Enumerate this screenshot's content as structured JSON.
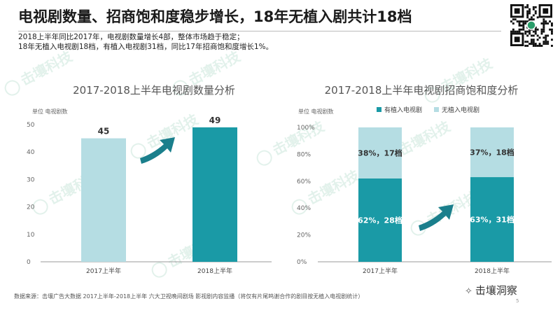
{
  "header": {
    "title": "电视剧数量、招商饱和度稳步增长，18年无植入剧共计18档",
    "subtitle_lines": [
      "2018上半年同比2017年，电视剧数量增长4部，整体市场趋于稳定；",
      "18年无植入电视剧18档，有植入电视剧31档，同比17年招商饱和度增长1%。"
    ]
  },
  "footer": {
    "source": "数据来源：击壤广告大数据  2017上半年-2018上半年  六大卫视晚间剧场  影视剧内容监播（将仅有片尾鸣谢合作的剧目按无植入电视剧统计）",
    "brand": "击壤洞察",
    "watermark_text": "击壤科技",
    "page_number": "5"
  },
  "colors": {
    "teal": "#1a9aa6",
    "light_blue": "#b5dde3",
    "arrow": "#1a7f8c"
  },
  "chart_data": [
    {
      "type": "bar",
      "title": "2017-2018上半年电视剧数量分析",
      "unit_label": "单位 电视剧数",
      "categories": [
        "2017上半年",
        "2018上半年"
      ],
      "values": [
        45,
        49
      ],
      "value_labels": [
        "45",
        "49"
      ],
      "bar_colors": [
        "#b5dde3",
        "#1a9aa6"
      ],
      "ylim": [
        0,
        50
      ],
      "yticks": [
        "0",
        "10",
        "20",
        "30",
        "40",
        "50"
      ],
      "grid": false
    },
    {
      "type": "bar",
      "stacked": true,
      "title": "2017-2018上半年电视剧招商饱和度分析",
      "unit_label": "单位 电视剧数",
      "categories": [
        "2017上半年",
        "2018上半年"
      ],
      "ylim": [
        0,
        100
      ],
      "yticks": [
        "0%",
        "20%",
        "40%",
        "60%",
        "80%",
        "100%"
      ],
      "legend_position": "top",
      "series": [
        {
          "name": "有植入电视剧",
          "values": [
            62,
            63
          ],
          "labels": [
            "62%，28档",
            "63%，31档"
          ],
          "color": "#1a9aa6"
        },
        {
          "name": "无植入电视剧",
          "values": [
            38,
            37
          ],
          "labels": [
            "38%，17档",
            "37%，18档"
          ],
          "color": "#b5dde3"
        }
      ],
      "grid": false
    }
  ]
}
